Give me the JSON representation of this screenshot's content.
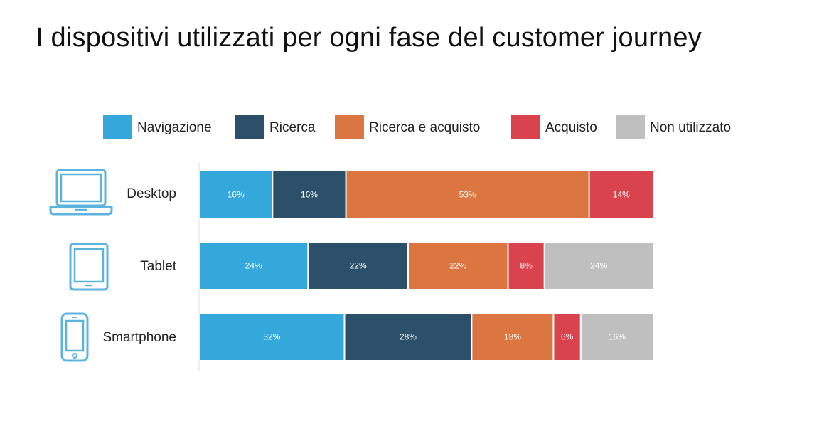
{
  "title": "I dispositivi utilizzati per ogni fase del customer journey",
  "colors": {
    "Navigazione": "#35A8DB",
    "Ricerca": "#2C5069",
    "Ricerca e acquisto": "#DB7641",
    "Acquisto": "#D9434E",
    "Non utilizzato": "#BFBFBF"
  },
  "devices": [
    {
      "label": "Desktop",
      "icon": "laptop-icon"
    },
    {
      "label": "Tablet",
      "icon": "tablet-icon"
    },
    {
      "label": "Smartphone",
      "icon": "smartphone-icon"
    }
  ],
  "chart_data": {
    "type": "bar",
    "orientation": "horizontal",
    "stacked": true,
    "title": "I dispositivi utilizzati per ogni fase del customer journey",
    "categories": [
      "Desktop",
      "Tablet",
      "Smartphone"
    ],
    "series": [
      {
        "name": "Navigazione",
        "values": [
          16,
          24,
          32
        ],
        "labels": [
          "16%",
          "24%",
          "32%"
        ]
      },
      {
        "name": "Ricerca",
        "values": [
          16,
          22,
          28
        ],
        "labels": [
          "16%",
          "22%",
          "28%"
        ]
      },
      {
        "name": "Ricerca e acquisto",
        "values": [
          53,
          22,
          18
        ],
        "labels": [
          "53%",
          "22%",
          "18%"
        ]
      },
      {
        "name": "Acquisto",
        "values": [
          14,
          8,
          6
        ],
        "labels": [
          "14%",
          "8%",
          "6%"
        ]
      },
      {
        "name": "Non utilizzato",
        "values": [
          0,
          24,
          16
        ],
        "labels": [
          "",
          "24%",
          "16%"
        ]
      }
    ],
    "xlim": [
      0,
      100
    ],
    "legend_position": "top",
    "grid": false
  }
}
